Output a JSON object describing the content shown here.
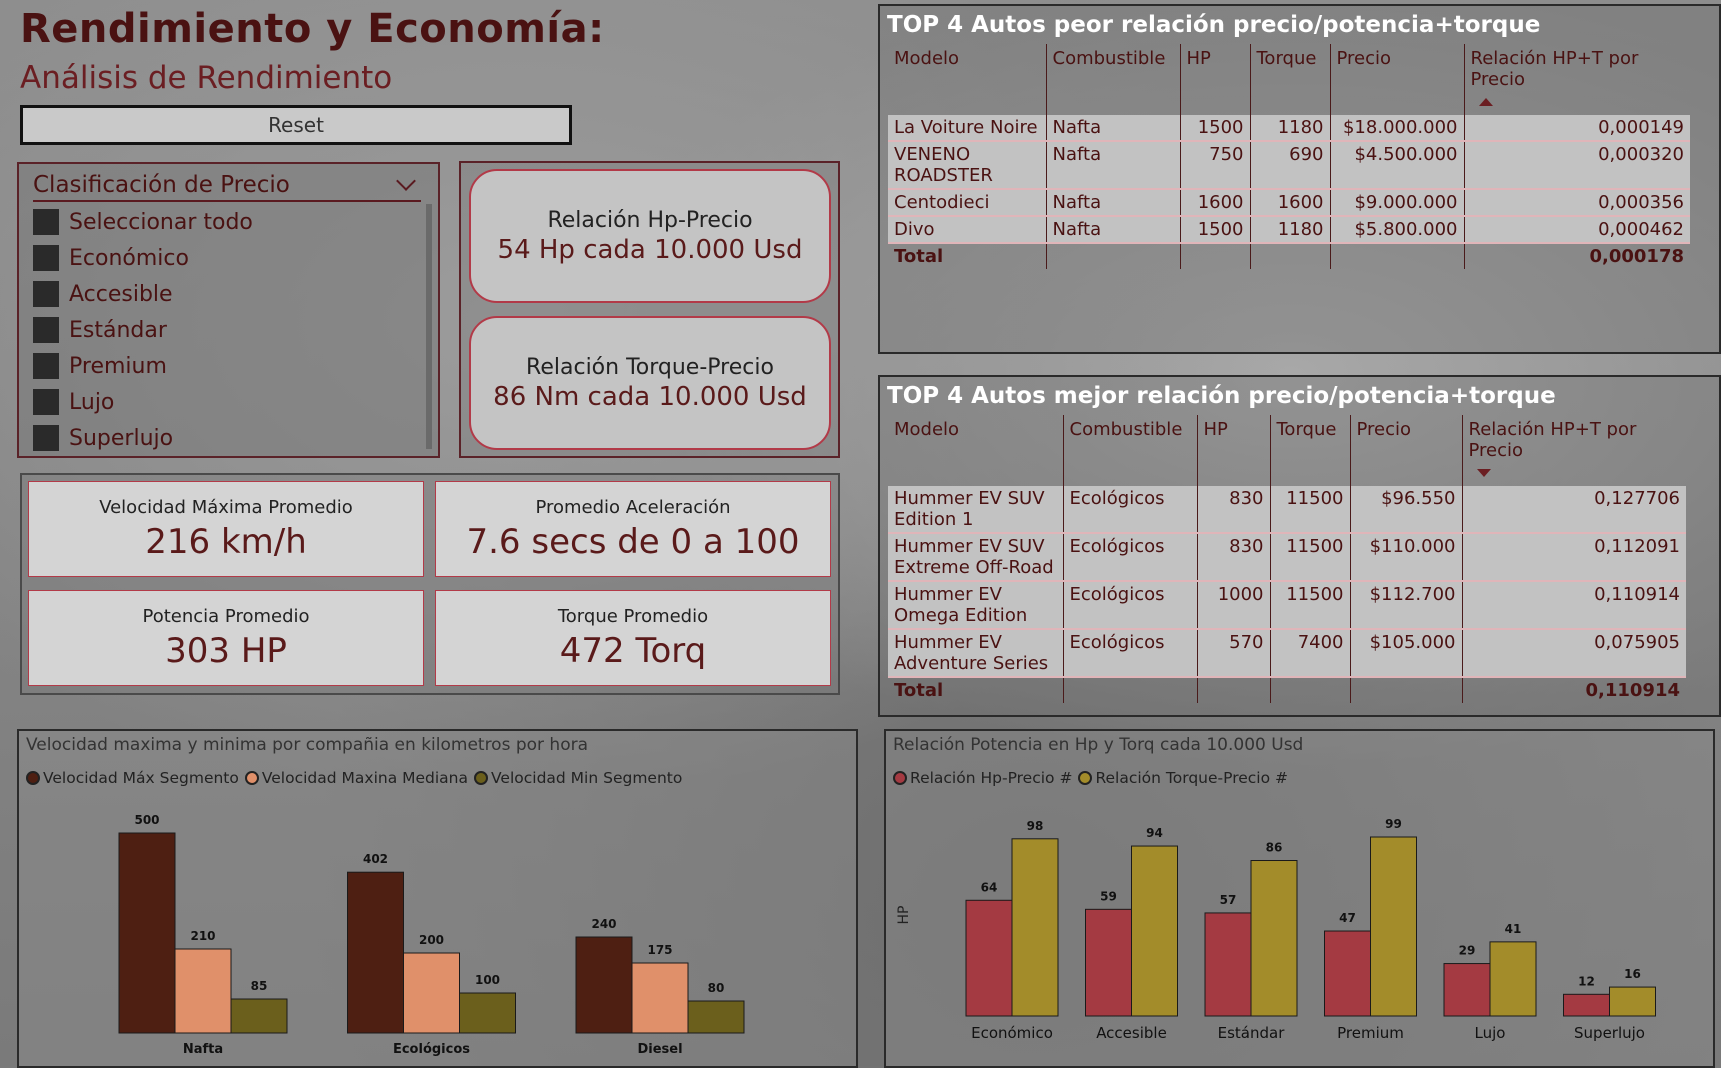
{
  "header": {
    "title": "Rendimiento y Economía:",
    "subtitle": "Análisis de Rendimiento",
    "reset_label": "Reset"
  },
  "slicer": {
    "title": "Clasificación de Precio",
    "items": [
      "Seleccionar todo",
      "Económico",
      "Accesible",
      "Estándar",
      "Premium",
      "Lujo",
      "Superlujo"
    ]
  },
  "relations": {
    "hp": {
      "label": "Relación Hp-Precio",
      "value": "54 Hp cada 10.000 Usd"
    },
    "torque": {
      "label": "Relación Torque-Precio",
      "value": "86 Nm cada 10.000 Usd"
    }
  },
  "kpis": {
    "speed": {
      "label": "Velocidad Máxima Promedio",
      "value": "216 km/h"
    },
    "accel": {
      "label": "Promedio Aceleración",
      "value": "7.6 secs de 0 a 100"
    },
    "power": {
      "label": "Potencia Promedio",
      "value": "303 HP"
    },
    "torque": {
      "label": "Torque Promedio",
      "value": "472 Torq"
    }
  },
  "worst_table": {
    "title": "TOP 4 Autos peor relación precio/potencia+torque",
    "headers": [
      "Modelo",
      "Combustible",
      "HP",
      "Torque",
      "Precio",
      "Relación HP+T por Precio"
    ],
    "rows": [
      [
        "La Voiture Noire",
        "Nafta",
        "1500",
        "1180",
        "$18.000.000",
        "0,000149"
      ],
      [
        "VENENO ROADSTER",
        "Nafta",
        "750",
        "690",
        "$4.500.000",
        "0,000320"
      ],
      [
        "Centodieci",
        "Nafta",
        "1600",
        "1600",
        "$9.000.000",
        "0,000356"
      ],
      [
        "Divo",
        "Nafta",
        "1500",
        "1180",
        "$5.800.000",
        "0,000462"
      ]
    ],
    "total_label": "Total",
    "total_value": "0,000178"
  },
  "best_table": {
    "title": "TOP 4 Autos mejor relación precio/potencia+torque",
    "headers": [
      "Modelo",
      "Combustible",
      "HP",
      "Torque",
      "Precio",
      "Relación HP+T por Precio"
    ],
    "rows": [
      [
        "Hummer EV SUV Edition 1",
        "Ecológicos",
        "830",
        "11500",
        "$96.550",
        "0,127706"
      ],
      [
        "Hummer EV SUV Extreme Off-Road",
        "Ecológicos",
        "830",
        "11500",
        "$110.000",
        "0,112091"
      ],
      [
        "Hummer EV Omega Edition",
        "Ecológicos",
        "1000",
        "11500",
        "$112.700",
        "0,110914"
      ],
      [
        "Hummer EV Adventure Series",
        "Ecológicos",
        "570",
        "7400",
        "$105.000",
        "0,075905"
      ]
    ],
    "total_label": "Total",
    "total_value": "0,110914"
  },
  "chart_data": [
    {
      "type": "bar",
      "title": "Velocidad maxima y minima por compañia en kilometros por hora",
      "categories": [
        "Nafta",
        "Ecológicos",
        "Diesel"
      ],
      "series": [
        {
          "name": "Velocidad Máx Segmento",
          "color": "#4e1f12",
          "values": [
            500,
            402,
            240
          ]
        },
        {
          "name": "Velocidad Maxina Mediana",
          "color": "#e0906a",
          "values": [
            210,
            200,
            175
          ]
        },
        {
          "name": "Velocidad Min Segmento",
          "color": "#6b5f1c",
          "values": [
            85,
            100,
            80
          ]
        }
      ],
      "ylim": [
        0,
        500
      ]
    },
    {
      "type": "bar",
      "title": "Relación Potencia en Hp y Torq cada 10.000 Usd",
      "ylabel": "HP",
      "categories": [
        "Económico",
        "Accesible",
        "Estándar",
        "Premium",
        "Lujo",
        "Superlujo"
      ],
      "series": [
        {
          "name": "Relación Hp-Precio #",
          "color": "#a43a42",
          "values": [
            64,
            59,
            57,
            47,
            29,
            12
          ]
        },
        {
          "name": "Relación Torque-Precio #",
          "color": "#a38c2a",
          "values": [
            98,
            94,
            86,
            99,
            41,
            16
          ]
        }
      ],
      "ylim": [
        0,
        99
      ]
    }
  ]
}
